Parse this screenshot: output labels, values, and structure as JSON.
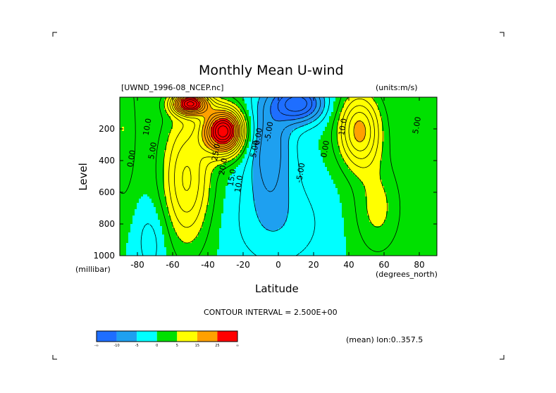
{
  "header": {
    "title": "Monthly Mean U-wind",
    "dataset": "[UWND_1996-08_NCEP.nc]",
    "units": "(units:m/s)"
  },
  "footer": {
    "contour_interval": "CONTOUR INTERVAL = 2.500E+00",
    "mean_note": "(mean) lon:0..357.5"
  },
  "chart_data": {
    "type": "heatmap",
    "title": "Monthly Mean U-wind",
    "xlabel": "Latitude",
    "xunits": "(degrees_north)",
    "ylabel": "Level",
    "yunits": "(millibar)",
    "xlim": [
      -90,
      90
    ],
    "ylim": [
      1000,
      0
    ],
    "x_ticks": [
      -80,
      -60,
      -40,
      -20,
      0,
      20,
      40,
      60,
      80
    ],
    "y_ticks": [
      200,
      400,
      600,
      800,
      1000
    ],
    "contour_interval": 2.5,
    "contour_labels": [
      {
        "text": "10.0",
        "lat": -73,
        "lev": 190
      },
      {
        "text": "5.00",
        "lat": -70,
        "lev": 340
      },
      {
        "text": "0.00",
        "lat": -82,
        "lev": 390
      },
      {
        "text": "25.0",
        "lat": -34,
        "lev": 350
      },
      {
        "text": "20.0",
        "lat": -30,
        "lev": 440
      },
      {
        "text": "15.0",
        "lat": -25,
        "lev": 510
      },
      {
        "text": "10.0",
        "lat": -21,
        "lev": 550
      },
      {
        "text": "5.00",
        "lat": -12,
        "lev": 330
      },
      {
        "text": "0.00",
        "lat": -10,
        "lev": 250
      },
      {
        "text": "-5.00",
        "lat": -4,
        "lev": 220
      },
      {
        "text": "-5.00",
        "lat": 14,
        "lev": 480
      },
      {
        "text": "0.00",
        "lat": 28,
        "lev": 330
      },
      {
        "text": "10.0",
        "lat": 38,
        "lev": 190
      },
      {
        "text": "5.00",
        "lat": 80,
        "lev": 180
      }
    ],
    "colorbar": {
      "labels": [
        "-∞",
        "-10",
        "-5",
        "0",
        "5",
        "15",
        "25",
        "∞"
      ],
      "colors": [
        "#1e6eff",
        "#1ea0f0",
        "#00ffff",
        "#00e000",
        "#ffff00",
        "#ffa000",
        "#ff0000"
      ]
    }
  }
}
